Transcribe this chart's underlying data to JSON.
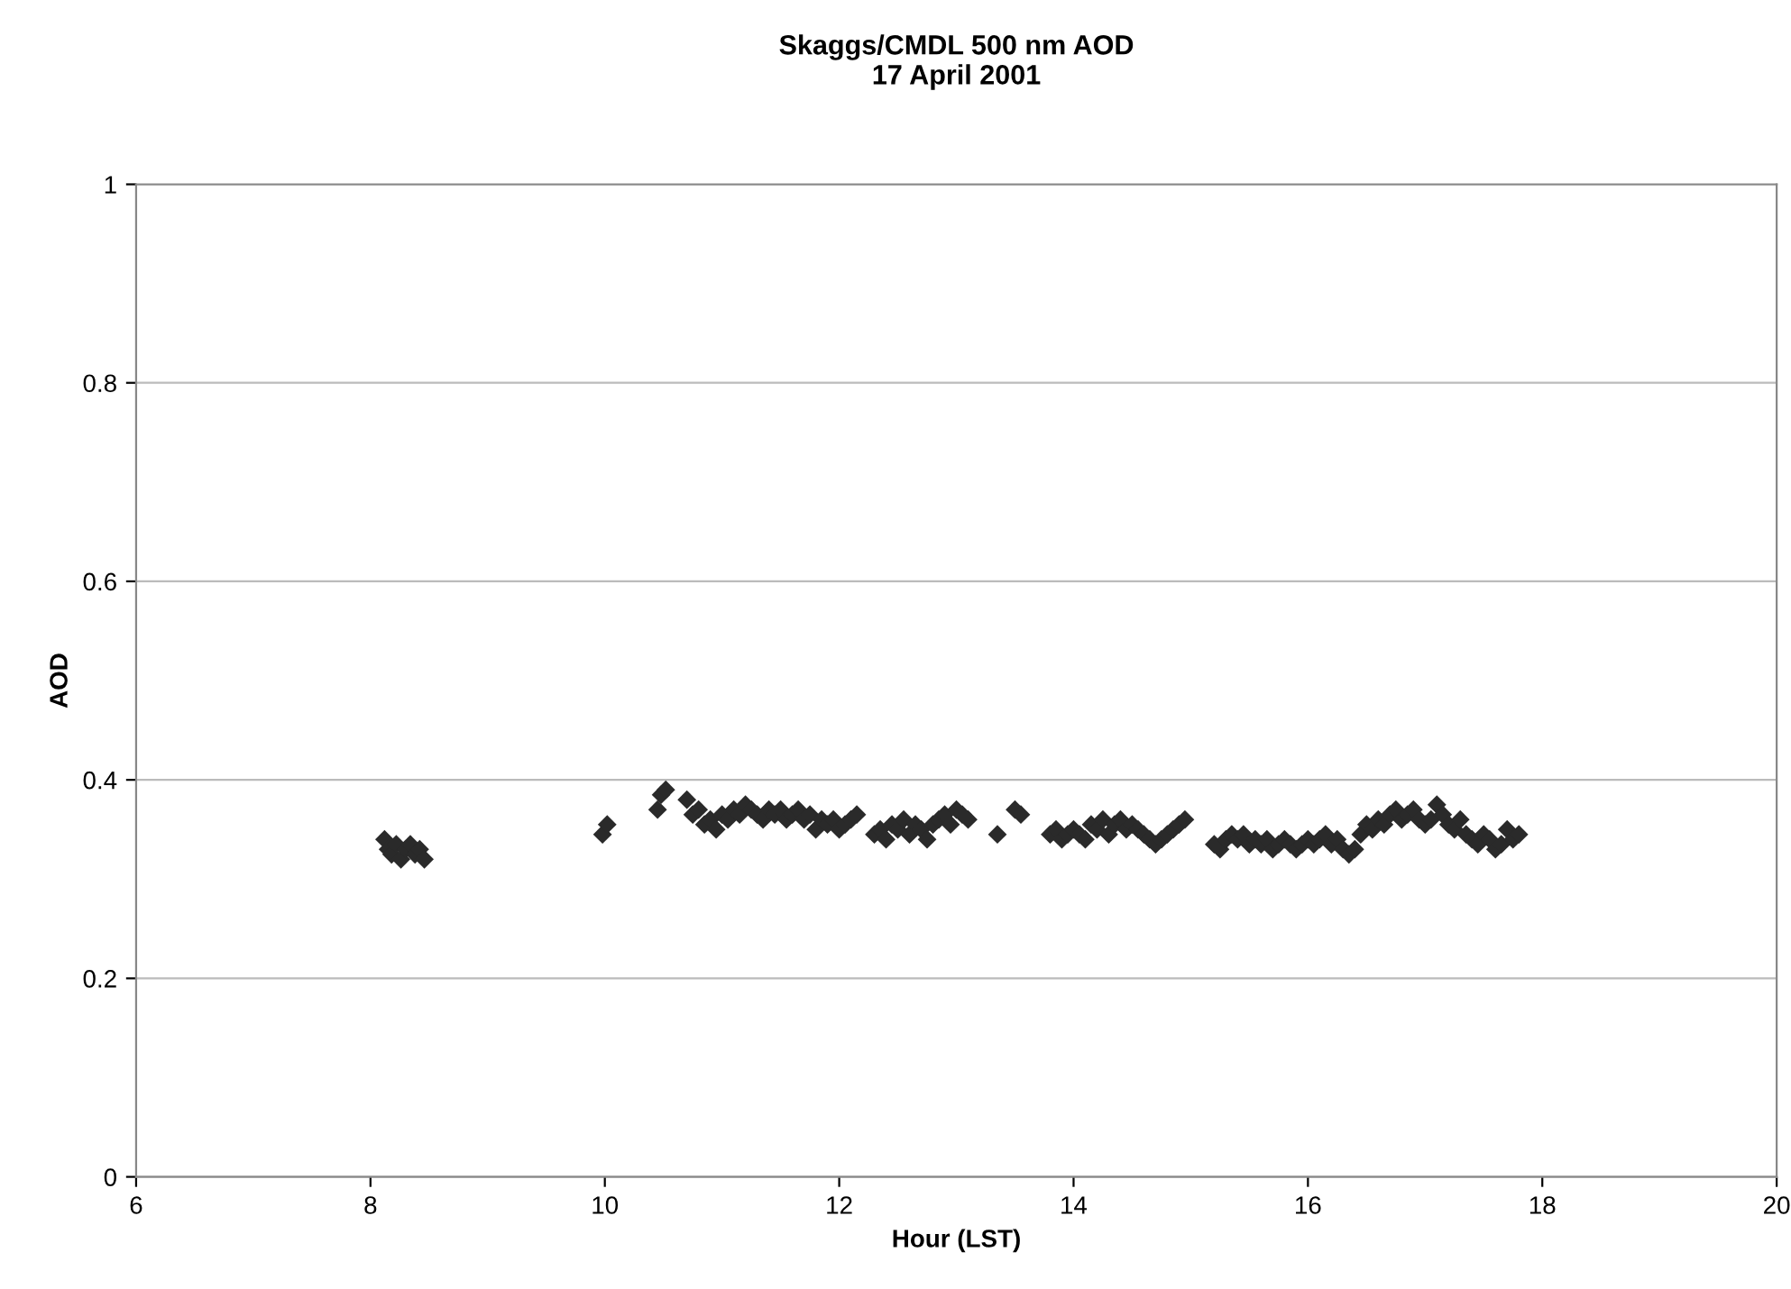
{
  "chart_data": {
    "type": "scatter",
    "title": "Skaggs/CMDL 500 nm AOD\n17 April 2001",
    "xlabel": "Hour (LST)",
    "ylabel": "AOD",
    "xlim": [
      6,
      20
    ],
    "xticks": [
      6,
      8,
      10,
      12,
      14,
      16,
      18,
      20
    ],
    "ylim": [
      0,
      1
    ],
    "yticks": [
      0,
      0.2,
      0.4,
      0.6,
      0.8,
      1
    ],
    "grid": "y",
    "marker": "diamond",
    "series": [
      {
        "color": "#2a2a2a",
        "x": [
          8.12,
          8.15,
          8.18,
          8.22,
          8.26,
          8.3,
          8.34,
          8.38,
          8.42,
          8.46,
          9.98,
          10.02,
          10.45,
          10.48,
          10.52,
          10.7,
          10.75,
          10.8,
          10.85,
          10.9,
          10.95,
          11.0,
          11.05,
          11.1,
          11.15,
          11.2,
          11.25,
          11.3,
          11.35,
          11.4,
          11.45,
          11.5,
          11.55,
          11.6,
          11.65,
          11.7,
          11.75,
          11.8,
          11.85,
          11.9,
          11.95,
          12.0,
          12.05,
          12.1,
          12.15,
          12.3,
          12.35,
          12.4,
          12.45,
          12.5,
          12.55,
          12.6,
          12.65,
          12.7,
          12.75,
          12.8,
          12.85,
          12.9,
          12.95,
          13.0,
          13.05,
          13.1,
          13.35,
          13.5,
          13.55,
          13.8,
          13.85,
          13.9,
          13.95,
          14.0,
          14.05,
          14.1,
          14.15,
          14.2,
          14.25,
          14.3,
          14.35,
          14.4,
          14.45,
          14.5,
          14.55,
          14.6,
          14.65,
          14.7,
          14.75,
          14.8,
          14.85,
          14.9,
          14.95,
          15.2,
          15.25,
          15.3,
          15.35,
          15.4,
          15.45,
          15.5,
          15.55,
          15.6,
          15.65,
          15.7,
          15.75,
          15.8,
          15.85,
          15.9,
          15.95,
          16.0,
          16.05,
          16.1,
          16.15,
          16.2,
          16.25,
          16.3,
          16.35,
          16.4,
          16.45,
          16.5,
          16.55,
          16.6,
          16.65,
          16.7,
          16.75,
          16.8,
          16.85,
          16.9,
          16.95,
          17.0,
          17.05,
          17.1,
          17.15,
          17.2,
          17.25,
          17.3,
          17.35,
          17.4,
          17.45,
          17.5,
          17.55,
          17.6,
          17.65,
          17.7,
          17.75,
          17.8
        ],
        "values": [
          0.34,
          0.33,
          0.325,
          0.335,
          0.32,
          0.33,
          0.335,
          0.325,
          0.33,
          0.32,
          0.345,
          0.355,
          0.37,
          0.385,
          0.39,
          0.38,
          0.365,
          0.37,
          0.355,
          0.36,
          0.35,
          0.365,
          0.36,
          0.37,
          0.365,
          0.375,
          0.37,
          0.365,
          0.36,
          0.37,
          0.365,
          0.37,
          0.36,
          0.365,
          0.37,
          0.36,
          0.365,
          0.35,
          0.36,
          0.355,
          0.36,
          0.35,
          0.355,
          0.36,
          0.365,
          0.345,
          0.35,
          0.34,
          0.355,
          0.35,
          0.36,
          0.345,
          0.355,
          0.35,
          0.34,
          0.355,
          0.36,
          0.365,
          0.355,
          0.37,
          0.365,
          0.36,
          0.345,
          0.37,
          0.365,
          0.345,
          0.35,
          0.34,
          0.345,
          0.35,
          0.345,
          0.34,
          0.355,
          0.35,
          0.36,
          0.345,
          0.355,
          0.36,
          0.35,
          0.355,
          0.35,
          0.345,
          0.34,
          0.335,
          0.34,
          0.345,
          0.35,
          0.355,
          0.36,
          0.335,
          0.33,
          0.34,
          0.345,
          0.34,
          0.345,
          0.335,
          0.34,
          0.335,
          0.34,
          0.33,
          0.335,
          0.34,
          0.335,
          0.33,
          0.335,
          0.34,
          0.335,
          0.34,
          0.345,
          0.335,
          0.34,
          0.33,
          0.325,
          0.33,
          0.345,
          0.355,
          0.35,
          0.36,
          0.355,
          0.365,
          0.37,
          0.36,
          0.365,
          0.37,
          0.36,
          0.355,
          0.36,
          0.375,
          0.365,
          0.355,
          0.35,
          0.36,
          0.345,
          0.34,
          0.335,
          0.345,
          0.34,
          0.33,
          0.335,
          0.35,
          0.34,
          0.345
        ]
      }
    ]
  }
}
